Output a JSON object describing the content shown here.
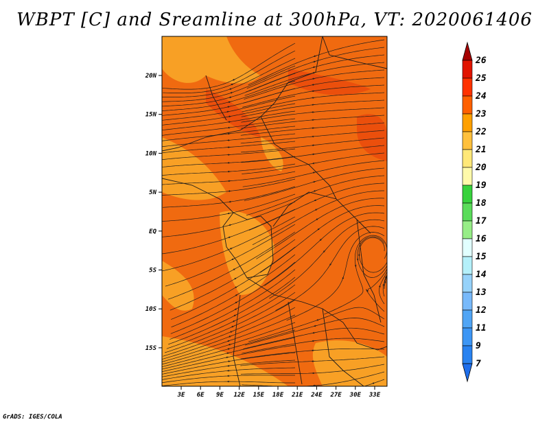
{
  "title": "WBPT [C] and Sreamline at 300hPa, VT: 2020061406",
  "footer": "GrADS: IGES/COLA",
  "map": {
    "lat_labels": [
      "20N",
      "15N",
      "10N",
      "5N",
      "EQ",
      "5S",
      "10S",
      "15S"
    ],
    "lon_labels": [
      "3E",
      "6E",
      "9E",
      "12E",
      "15E",
      "18E",
      "21E",
      "24E",
      "27E",
      "30E",
      "33E"
    ]
  },
  "colorbar": {
    "levels": [
      "7",
      "9",
      "11",
      "12",
      "13",
      "14",
      "15",
      "16",
      "17",
      "18",
      "19",
      "20",
      "21",
      "22",
      "23",
      "24",
      "25",
      "26"
    ],
    "colors": [
      "#1e6eeb",
      "#2882f0",
      "#3c96f5",
      "#50a5f5",
      "#78b9fa",
      "#96d2fa",
      "#b4f0fa",
      "#e1ffff",
      "#97ed87",
      "#5adc5a",
      "#37d23c",
      "#fffaaa",
      "#ffe878",
      "#ffc03c",
      "#ffa000",
      "#ff6000",
      "#ff3200",
      "#e11400",
      "#a50000"
    ]
  },
  "colors": {
    "field_base": "#f06a10",
    "field_warm": "#ea4a0c",
    "field_cool": "#f8a628",
    "streamline": "#1c1c1c"
  }
}
